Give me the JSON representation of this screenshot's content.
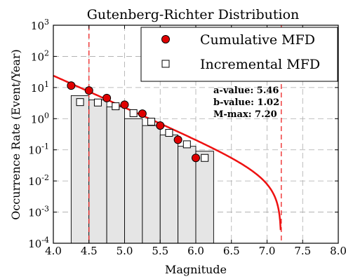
{
  "chart_data": {
    "type": "bar",
    "title": "Gutenberg-Richter Distribution",
    "xlabel": "Magnitude",
    "ylabel": "Occurrence Rate (Event/Year)",
    "xlim": [
      4.0,
      8.0
    ],
    "ylim": [
      0.0001,
      1000
    ],
    "y_scale": "log",
    "grid": true,
    "legend_position": "top-right",
    "x_ticks": [
      "4.0",
      "4.5",
      "5.0",
      "5.5",
      "6.0",
      "6.5",
      "7.0",
      "7.5",
      "8.0"
    ],
    "y_ticks": [
      {
        "value": 1000,
        "base": "10",
        "exp": "3"
      },
      {
        "value": 100,
        "base": "10",
        "exp": "2"
      },
      {
        "value": 10,
        "base": "10",
        "exp": "1"
      },
      {
        "value": 1,
        "base": "10",
        "exp": "0"
      },
      {
        "value": 0.1,
        "base": "10",
        "exp": "-1"
      },
      {
        "value": 0.01,
        "base": "10",
        "exp": "-2"
      },
      {
        "value": 0.001,
        "base": "10",
        "exp": "-3"
      },
      {
        "value": 0.0001,
        "base": "10",
        "exp": "-4"
      }
    ],
    "histogram": {
      "bin_width": 0.25,
      "bins": [
        {
          "x0": 4.25,
          "value": 5.5
        },
        {
          "x0": 4.5,
          "value": 4.0
        },
        {
          "x0": 4.75,
          "value": 2.4
        },
        {
          "x0": 5.0,
          "value": 1.0
        },
        {
          "x0": 5.25,
          "value": 0.6
        },
        {
          "x0": 5.5,
          "value": 0.3
        },
        {
          "x0": 5.75,
          "value": 0.13
        },
        {
          "x0": 6.0,
          "value": 0.09
        }
      ]
    },
    "series": [
      {
        "name": "Cumulative MFD",
        "marker": "circle",
        "color": "#e00000",
        "points": [
          [
            4.25,
            11.5
          ],
          [
            4.5,
            8.0
          ],
          [
            4.75,
            4.6
          ],
          [
            5.0,
            2.8
          ],
          [
            5.25,
            1.45
          ],
          [
            5.5,
            0.6
          ],
          [
            5.75,
            0.21
          ],
          [
            6.0,
            0.055
          ]
        ]
      },
      {
        "name": "Incremental MFD",
        "marker": "square",
        "color": "#ffffff",
        "points": [
          [
            4.375,
            3.4
          ],
          [
            4.625,
            3.3
          ],
          [
            4.875,
            2.5
          ],
          [
            5.125,
            1.5
          ],
          [
            5.375,
            0.8
          ],
          [
            5.625,
            0.35
          ],
          [
            5.875,
            0.15
          ],
          [
            6.125,
            0.055
          ]
        ]
      }
    ],
    "fit_curve": {
      "a_value": 5.46,
      "b_value": 1.02,
      "m_min": 4.0,
      "m_max": 7.2,
      "color": "#ee1111"
    },
    "reference_lines": [
      {
        "x": 4.5,
        "color": "#ee2222",
        "style": "dashed"
      },
      {
        "x": 7.2,
        "color": "#ee2222",
        "style": "dashed"
      }
    ],
    "annotations": [
      "a-value: 5.46",
      "b-value: 1.02",
      "M-max: 7.20"
    ],
    "colors": {
      "bar_fill": "#e5e5e5",
      "bar_edge": "#000000",
      "grid": "#aaaaaa",
      "marker_edge": "#000000"
    }
  }
}
